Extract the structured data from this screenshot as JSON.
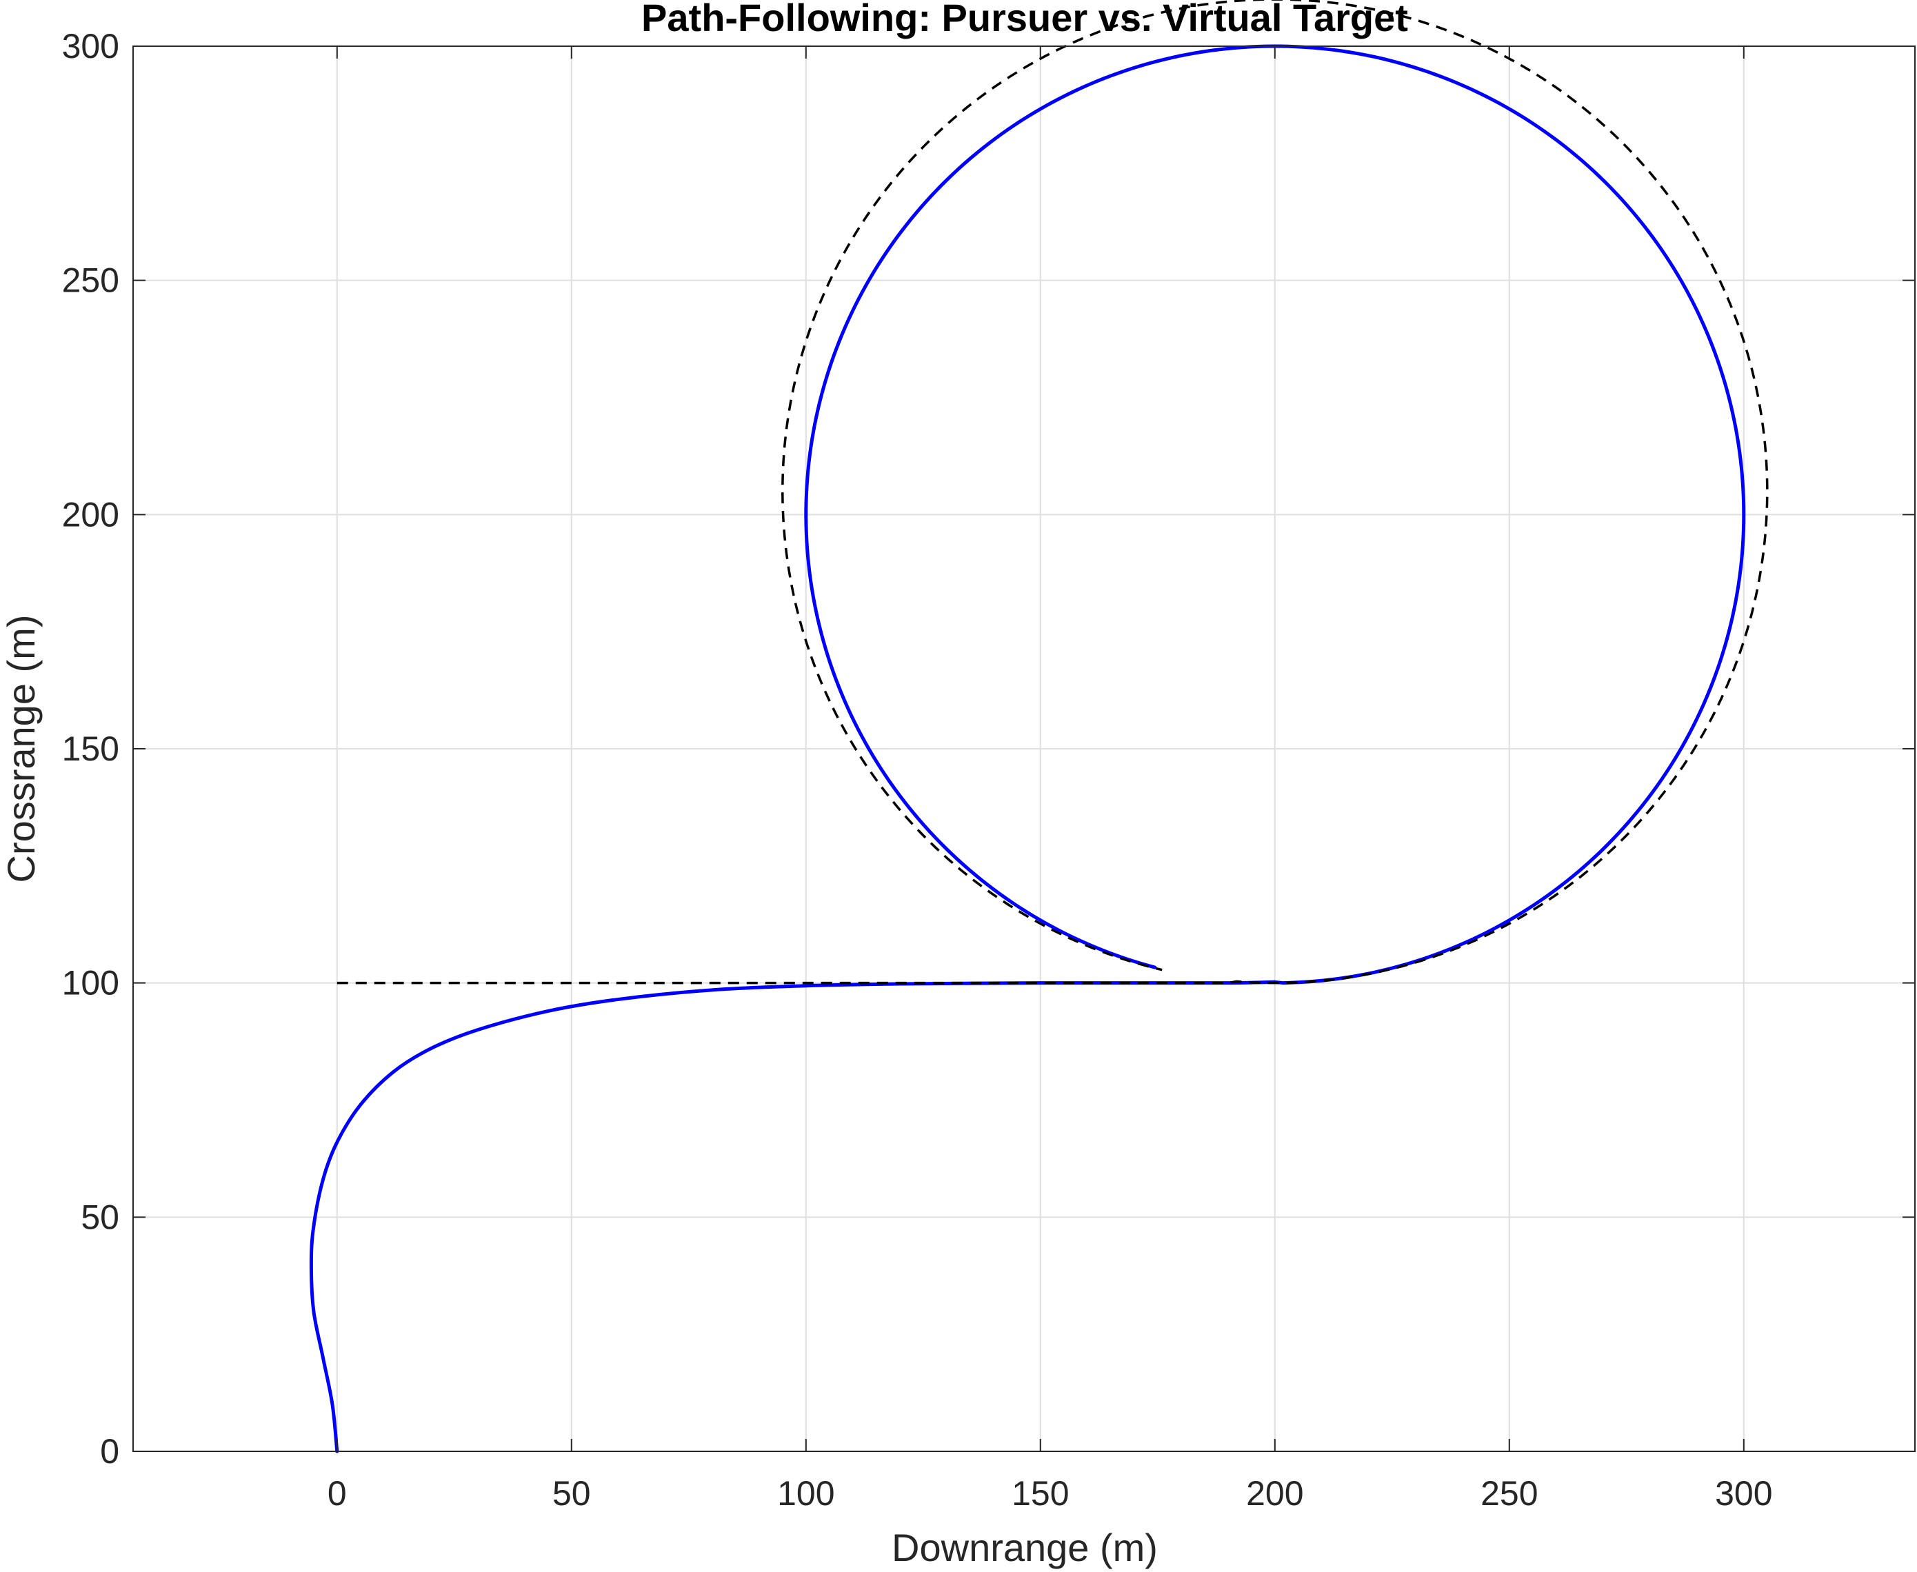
{
  "chart_data": {
    "type": "line",
    "title": "Path-Following: Pursuer vs. Virtual Target",
    "xlabel": "Downrange (m)",
    "ylabel": "Crossrange (m)",
    "xlim": [
      -43.5,
      336.5
    ],
    "ylim": [
      0,
      300
    ],
    "xticks": [
      0,
      50,
      100,
      150,
      200,
      250,
      300
    ],
    "yticks": [
      0,
      50,
      100,
      150,
      200,
      250,
      300
    ],
    "xtick_labels": [
      "0",
      "50",
      "100",
      "150",
      "200",
      "250",
      "300"
    ],
    "ytick_labels": [
      "0",
      "50",
      "100",
      "150",
      "200",
      "250",
      "300"
    ],
    "grid": true,
    "series": [
      {
        "style": "solid",
        "color": "#0000FF",
        "x": [
          0,
          -1,
          -3,
          -5,
          -5.5,
          -5,
          -3,
          0,
          5,
          12,
          20,
          30,
          45,
          60,
          80,
          100,
          120,
          150,
          175,
          190,
          200
        ],
        "y": [
          0,
          10,
          20,
          30,
          40,
          48,
          58,
          66,
          74,
          81,
          86,
          90,
          94,
          96.5,
          98.5,
          99.4,
          99.8,
          100,
          100,
          100,
          100.2
        ],
        "circle_segment": {
          "center": [
            200,
            200
          ],
          "radius": 100,
          "start_point": [
            200,
            100.2
          ],
          "end_point": [
            174.4,
            103.3
          ],
          "direction": "counterclockwise"
        }
      },
      {
        "style": "dashed",
        "color": "#000000",
        "x": [
          0,
          50,
          100,
          150,
          185,
          190
        ],
        "y": [
          100,
          100,
          100,
          100,
          100,
          100
        ],
        "circle_segment": {
          "center": [
            200,
            205
          ],
          "radius": 105,
          "start_point": [
            190,
            100
          ],
          "end_point": [
            176,
            103
          ],
          "direction": "counterclockwise"
        }
      }
    ]
  }
}
